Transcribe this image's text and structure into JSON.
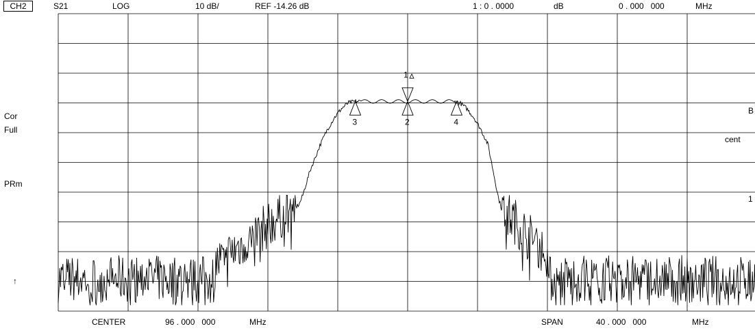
{
  "header": {
    "channel": "CH2",
    "param": "S21",
    "format": "LOG",
    "scale": "10 dB/",
    "ref": "REF -14.26 dB",
    "marker_readout_id": "1 : 0 . 0000",
    "marker_readout_unit": "dB",
    "marker_freq_value": "0 . 000   000",
    "marker_freq_unit": "MHz"
  },
  "left_labels": {
    "cor": "Cor",
    "full": "Full",
    "prm": "PRm",
    "arrow": "↑"
  },
  "right_labels": {
    "b": "B",
    "cent": "cent",
    "one": "1"
  },
  "footer": {
    "center_label": "CENTER",
    "center_value": "96 . 000   000",
    "center_unit": "MHz",
    "span_label": "SPAN",
    "span_value": "40 . 000   000",
    "span_unit": "MHz"
  },
  "chart_data": {
    "type": "line",
    "x_unit": "MHz",
    "center_mhz": 96,
    "span_mhz": 40,
    "xlim": [
      76,
      116
    ],
    "ylim_div": [
      0,
      10
    ],
    "grid": true,
    "notes_div": "y values are in grid divisions from the bottom; 10 dB per division",
    "passband": {
      "x": [
        93.3,
        98.7
      ],
      "y_div": 7.05,
      "ripple_div": 0.1
    },
    "skirt_lower": {
      "x": [
        89.6,
        89.8,
        90.0,
        90.2,
        90.4,
        90.6,
        90.8,
        91.0,
        91.4,
        91.8,
        92.2,
        92.6,
        93.0,
        93.3
      ],
      "y_div": [
        3.5,
        3.6,
        3.9,
        4.3,
        4.7,
        5.0,
        5.3,
        5.6,
        6.1,
        6.5,
        6.8,
        7.0,
        7.05,
        7.05
      ]
    },
    "skirt_upper": {
      "x": [
        98.7,
        99.0,
        99.4,
        99.8,
        100.2,
        100.6,
        100.8,
        101.0,
        101.2,
        101.4
      ],
      "y_div": [
        7.05,
        7.0,
        6.8,
        6.5,
        6.1,
        5.6,
        5.0,
        4.4,
        3.8,
        3.4
      ]
    },
    "noise_floor_div": {
      "min": 0.2,
      "max": 2.4,
      "typical": 1.0
    },
    "shoulder_lower": {
      "x": [
        85.0,
        89.6
      ],
      "y_div": [
        1.5,
        3.5
      ]
    },
    "shoulder_upper": {
      "x": [
        101.4,
        104.0
      ],
      "y_div": [
        3.4,
        1.8
      ]
    },
    "markers": [
      {
        "label": "1",
        "x": 96.0,
        "style": "down",
        "note": "1 Δ"
      },
      {
        "label": "2",
        "x": 96.0,
        "style": "up"
      },
      {
        "label": "3",
        "x": 93.0,
        "style": "up"
      },
      {
        "label": "4",
        "x": 98.8,
        "style": "up"
      }
    ]
  }
}
